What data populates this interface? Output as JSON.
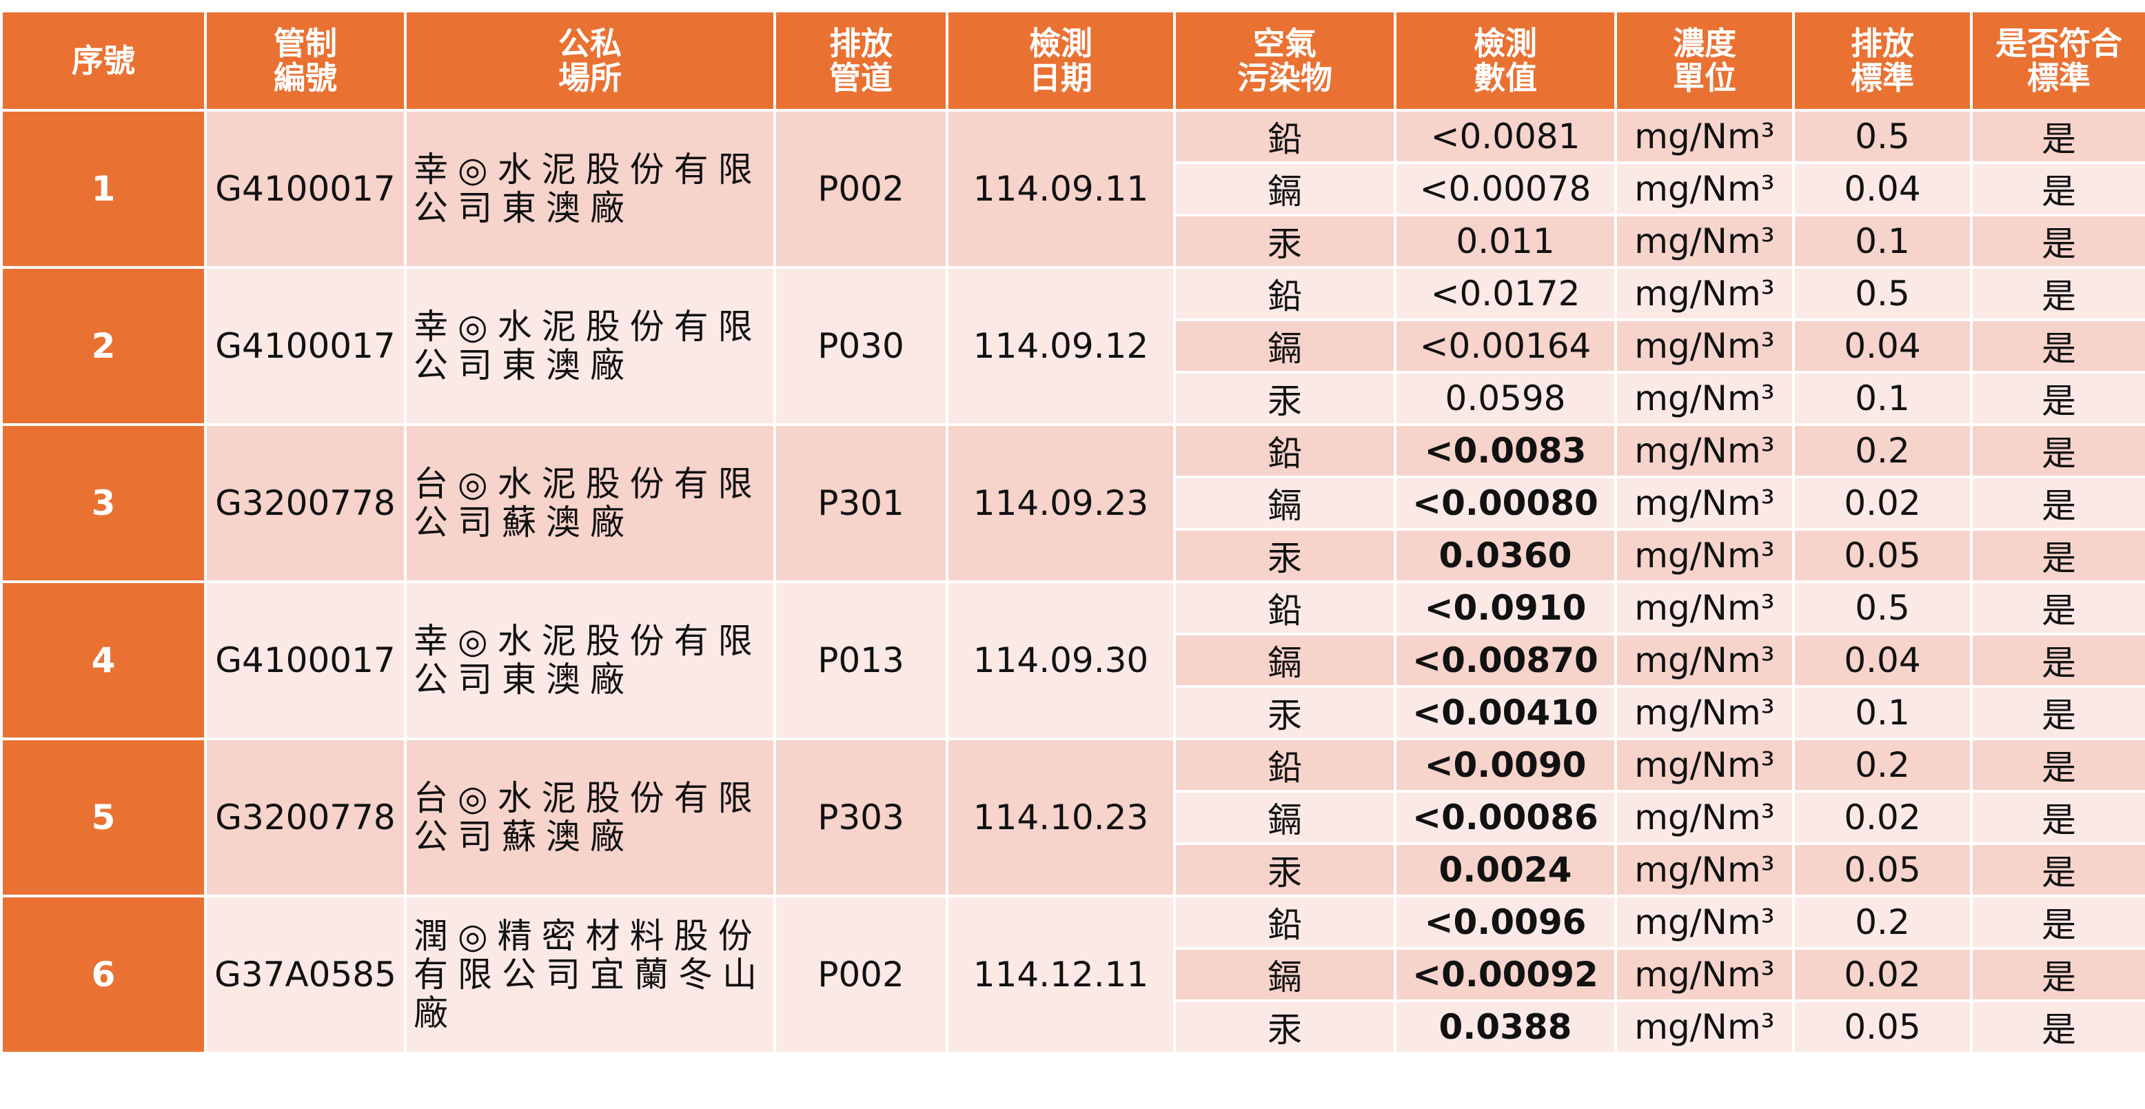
{
  "table": {
    "header": [
      "序號",
      "管制\n編號",
      "公私\n場所",
      "排放\n管道",
      "檢測\n日期",
      "空氣\n污染物",
      "檢測\n數值",
      "濃度\n單位",
      "排放\n標準",
      "是否符合\n標準"
    ],
    "groups": [
      {
        "no": "1",
        "control_no": "G4100017",
        "facility": "幸◎水泥股份有限公司東澳廠",
        "pipe": "P002",
        "date": "114.09.11",
        "measurements": [
          {
            "pollutant": "鉛",
            "value": "<0.0081",
            "unit": "mg/Nm³",
            "standard": "0.5",
            "compliant": "是"
          },
          {
            "pollutant": "鎘",
            "value": "<0.00078",
            "unit": "mg/Nm³",
            "standard": "0.04",
            "compliant": "是"
          },
          {
            "pollutant": "汞",
            "value": "0.011",
            "unit": "mg/Nm³",
            "standard": "0.1",
            "compliant": "是"
          }
        ]
      },
      {
        "no": "2",
        "control_no": "G4100017",
        "facility": "幸◎水泥股份有限公司東澳廠",
        "pipe": "P030",
        "date": "114.09.12",
        "measurements": [
          {
            "pollutant": "鉛",
            "value": "<0.0172",
            "unit": "mg/Nm³",
            "standard": "0.5",
            "compliant": "是"
          },
          {
            "pollutant": "鎘",
            "value": "<0.00164",
            "unit": "mg/Nm³",
            "standard": "0.04",
            "compliant": "是"
          },
          {
            "pollutant": "汞",
            "value": "0.0598",
            "unit": "mg/Nm³",
            "standard": "0.1",
            "compliant": "是"
          }
        ]
      },
      {
        "no": "3",
        "control_no": "G3200778",
        "facility": "台◎水泥股份有限公司蘇澳廠",
        "pipe": "P301",
        "date": "114.09.23",
        "measurements": [
          {
            "pollutant": "鉛",
            "value": "<0.0083",
            "unit": "mg/Nm³",
            "standard": "0.2",
            "compliant": "是"
          },
          {
            "pollutant": "鎘",
            "value": "<0.00080",
            "unit": "mg/Nm³",
            "standard": "0.02",
            "compliant": "是"
          },
          {
            "pollutant": "汞",
            "value": "0.0360",
            "unit": "mg/Nm³",
            "standard": "0.05",
            "compliant": "是"
          }
        ]
      },
      {
        "no": "4",
        "control_no": "G4100017",
        "facility": "幸◎水泥股份有限公司東澳廠",
        "pipe": "P013",
        "date": "114.09.30",
        "measurements": [
          {
            "pollutant": "鉛",
            "value": "<0.0910",
            "unit": "mg/Nm³",
            "standard": "0.5",
            "compliant": "是"
          },
          {
            "pollutant": "鎘",
            "value": "<0.00870",
            "unit": "mg/Nm³",
            "standard": "0.04",
            "compliant": "是"
          },
          {
            "pollutant": "汞",
            "value": "<0.00410",
            "unit": "mg/Nm³",
            "standard": "0.1",
            "compliant": "是"
          }
        ]
      },
      {
        "no": "5",
        "control_no": "G3200778",
        "facility": "台◎水泥股份有限公司蘇澳廠",
        "pipe": "P303",
        "date": "114.10.23",
        "measurements": [
          {
            "pollutant": "鉛",
            "value": "<0.0090",
            "unit": "mg/Nm³",
            "standard": "0.2",
            "compliant": "是"
          },
          {
            "pollutant": "鎘",
            "value": "<0.00086",
            "unit": "mg/Nm³",
            "standard": "0.02",
            "compliant": "是"
          },
          {
            "pollutant": "汞",
            "value": "0.0024",
            "unit": "mg/Nm³",
            "standard": "0.05",
            "compliant": "是"
          }
        ]
      },
      {
        "no": "6",
        "control_no": "G37A0585",
        "facility": "潤◎精密材料股份有限公司宜蘭冬山廠",
        "pipe": "P002",
        "date": "114.12.11",
        "measurements": [
          {
            "pollutant": "鉛",
            "value": "<0.0096",
            "unit": "mg/Nm³",
            "standard": "0.2",
            "compliant": "是"
          },
          {
            "pollutant": "鎘",
            "value": "<0.00092",
            "unit": "mg/Nm³",
            "standard": "0.02",
            "compliant": "是"
          },
          {
            "pollutant": "汞",
            "value": "0.0388",
            "unit": "mg/Nm³",
            "standard": "0.05",
            "compliant": "是"
          }
        ]
      }
    ]
  }
}
